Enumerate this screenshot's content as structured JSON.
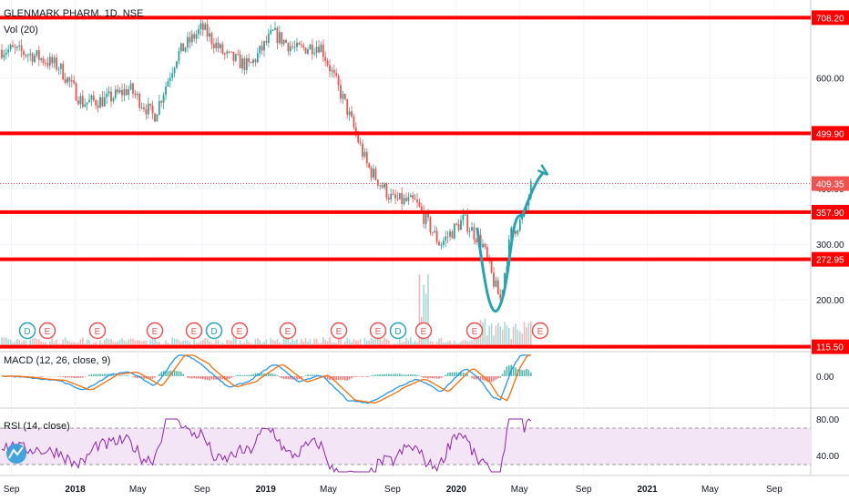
{
  "header": {
    "symbol_title": "GLENMARK PHARM, 1D, NSE",
    "volume_label": "Vol (20)"
  },
  "indicators": {
    "macd_label": "MACD (12, 26, close, 9)",
    "rsi_label": "RSI (14, close)"
  },
  "chart_data": [
    {
      "type": "line",
      "name": "price-pane",
      "series": [
        {
          "name": "GLENMARK PHARM, 1D, NSE",
          "x": [
            "2017-09-01",
            "2017-10-15",
            "2017-12-01",
            "2018-01-15",
            "2018-03-01",
            "2018-04-15",
            "2018-06-01",
            "2018-07-15",
            "2018-09-01",
            "2018-10-15",
            "2018-12-01",
            "2019-01-15",
            "2019-03-01",
            "2019-04-15",
            "2019-06-01",
            "2019-07-15",
            "2019-09-01",
            "2019-10-15",
            "2019-12-01",
            "2020-01-15",
            "2020-02-20",
            "2020-03-10",
            "2020-03-25",
            "2020-04-15",
            "2020-05-10",
            "2020-05-27"
          ],
          "values": [
            650,
            640,
            620,
            555,
            560,
            580,
            530,
            640,
            690,
            640,
            620,
            680,
            650,
            660,
            555,
            440,
            380,
            375,
            300,
            345,
            300,
            240,
            200,
            320,
            350,
            420
          ]
        }
      ],
      "y_ticks": [
        "600.00",
        "500.00",
        "400.00",
        "300.00",
        "200.00"
      ],
      "y_range": [
        110,
        740
      ],
      "horizontal_levels": [
        "708.20",
        "499.90",
        "357.90",
        "272.95",
        "115.50"
      ],
      "last_price_label": "409.35",
      "x_ticks": [
        "Sep",
        "2018",
        "May",
        "Sep",
        "2019",
        "May",
        "Sep",
        "2020",
        "May",
        "Sep",
        "2021",
        "May",
        "Sep"
      ],
      "event_markers": [
        "D",
        "E",
        "E",
        "E",
        "E",
        "D",
        "E",
        "E",
        "E",
        "E",
        "D",
        "E",
        "E",
        "E"
      ],
      "colors": {
        "level_lines": "#ff0000",
        "up": "#26a69a",
        "down": "#ef5350",
        "highlight_curve": "#26a3b5",
        "last_price": "#ef5350",
        "axis_label_bg": "#ff0000"
      }
    },
    {
      "type": "line",
      "name": "macd-pane",
      "y_ticks": [
        "0.00"
      ],
      "colors": {
        "macd": "#2196f3",
        "signal": "#ff6d00",
        "hist_up": "#26a69a",
        "hist_down": "#ef5350"
      }
    },
    {
      "type": "line",
      "name": "rsi-pane",
      "y_ticks": [
        "80.00",
        "40.00"
      ],
      "colors": {
        "rsi": "#8e24aa",
        "band_fill": "#f3e5f5"
      }
    }
  ]
}
